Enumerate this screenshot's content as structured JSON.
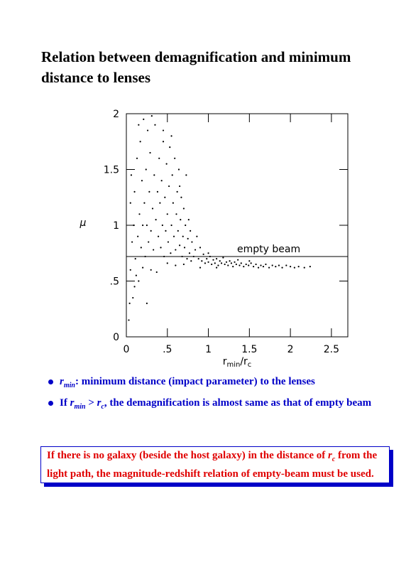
{
  "title": "Relation between demagnification and minimum distance to lenses",
  "chart_data": {
    "type": "scatter",
    "color": "#000000",
    "xlabel": [
      "r",
      "min",
      "/r",
      "c"
    ],
    "ylabel": "μ",
    "xlim": [
      0,
      2.7
    ],
    "ylim": [
      0,
      2
    ],
    "xticks": [
      0,
      {
        "value": 0.5,
        "label": ".5"
      },
      1,
      1.5,
      2,
      2.5
    ],
    "yticks": [
      0,
      {
        "value": 0.5,
        "label": ".5"
      },
      1,
      1.5,
      2
    ],
    "reference_line": {
      "y": 0.72,
      "label": "empty beam"
    },
    "x": [
      0.03,
      0.04,
      0.05,
      0.05,
      0.06,
      0.07,
      0.08,
      0.09,
      0.1,
      0.1,
      0.11,
      0.12,
      0.13,
      0.14,
      0.15,
      0.16,
      0.17,
      0.18,
      0.19,
      0.2,
      0.21,
      0.22,
      0.23,
      0.24,
      0.25,
      0.26,
      0.27,
      0.28,
      0.29,
      0.3,
      0.31,
      0.32,
      0.33,
      0.34,
      0.35,
      0.36,
      0.37,
      0.38,
      0.39,
      0.4,
      0.41,
      0.42,
      0.43,
      0.44,
      0.45,
      0.46,
      0.47,
      0.48,
      0.49,
      0.5,
      0.51,
      0.52,
      0.53,
      0.54,
      0.55,
      0.56,
      0.57,
      0.58,
      0.59,
      0.6,
      0.61,
      0.62,
      0.63,
      0.64,
      0.65,
      0.66,
      0.67,
      0.68,
      0.69,
      0.7,
      0.71,
      0.72,
      0.73,
      0.74,
      0.75,
      0.76,
      0.77,
      0.78,
      0.79,
      0.8,
      0.82,
      0.84,
      0.86,
      0.88,
      0.9,
      0.92,
      0.94,
      0.96,
      0.98,
      1.0,
      1.02,
      1.04,
      1.06,
      1.08,
      1.1,
      1.12,
      1.14,
      1.16,
      1.18,
      1.2,
      1.22,
      1.24,
      1.26,
      1.28,
      1.3,
      1.32,
      1.34,
      1.36,
      1.38,
      1.4,
      1.43,
      1.46,
      1.49,
      1.52,
      1.55,
      1.58,
      1.61,
      1.64,
      1.67,
      1.7,
      1.74,
      1.78,
      1.82,
      1.86,
      1.9,
      1.95,
      2.0,
      2.05,
      2.1,
      2.17,
      2.24,
      0.2,
      0.3,
      0.5,
      0.6,
      0.7,
      0.9,
      1.0,
      1.1,
      0.25,
      0.15,
      0.45,
      0.55,
      0.65,
      1.5
    ],
    "y": [
      0.15,
      0.3,
      0.6,
      1.2,
      1.45,
      0.85,
      0.35,
      1.0,
      0.45,
      1.3,
      0.7,
      0.55,
      1.6,
      0.9,
      0.5,
      1.1,
      1.75,
      0.8,
      1.4,
      0.62,
      1.95,
      1.2,
      0.72,
      1.5,
      1.0,
      1.85,
      0.85,
      1.3,
      1.65,
      0.95,
      1.98,
      1.15,
      0.78,
      1.45,
      1.9,
      1.05,
      0.58,
      1.3,
      0.9,
      1.6,
      1.2,
      0.8,
      1.4,
      1.0,
      1.75,
      0.72,
      1.25,
      0.95,
      1.55,
      1.1,
      0.85,
      1.35,
      1.7,
      0.75,
      1.0,
      1.45,
      1.2,
      0.9,
      1.6,
      0.78,
      1.1,
      1.3,
      0.95,
      1.5,
      0.82,
      1.05,
      1.25,
      0.72,
      0.9,
      1.15,
      0.8,
      1.0,
      1.45,
      0.7,
      0.88,
      1.05,
      0.75,
      0.95,
      0.68,
      0.85,
      0.72,
      0.78,
      0.9,
      0.7,
      0.8,
      0.68,
      0.74,
      0.66,
      0.7,
      0.67,
      0.72,
      0.65,
      0.69,
      0.66,
      0.7,
      0.64,
      0.68,
      0.66,
      0.71,
      0.65,
      0.67,
      0.64,
      0.68,
      0.66,
      0.63,
      0.67,
      0.65,
      0.69,
      0.64,
      0.66,
      0.63,
      0.65,
      0.64,
      0.66,
      0.63,
      0.65,
      0.62,
      0.64,
      0.63,
      0.65,
      0.62,
      0.64,
      0.63,
      0.64,
      0.62,
      0.64,
      0.63,
      0.62,
      0.63,
      0.62,
      0.63,
      1.0,
      0.6,
      0.66,
      0.64,
      0.65,
      0.62,
      0.75,
      0.62,
      0.3,
      1.9,
      1.85,
      1.8,
      1.35,
      0.68
    ]
  },
  "bullets": [
    [
      "r",
      "min",
      ": minimum distance (impact parameter) to the lenses"
    ],
    [
      "If ",
      "r",
      "min",
      " > ",
      "r",
      "c",
      ", the demagnification is almost same as that of empty beam"
    ]
  ],
  "note": [
    "If there is no galaxy (beside the host galaxy) in the distance of ",
    "r",
    "c",
    " from the light path, the magnitude-redshift relation of empty-beam must be used."
  ]
}
